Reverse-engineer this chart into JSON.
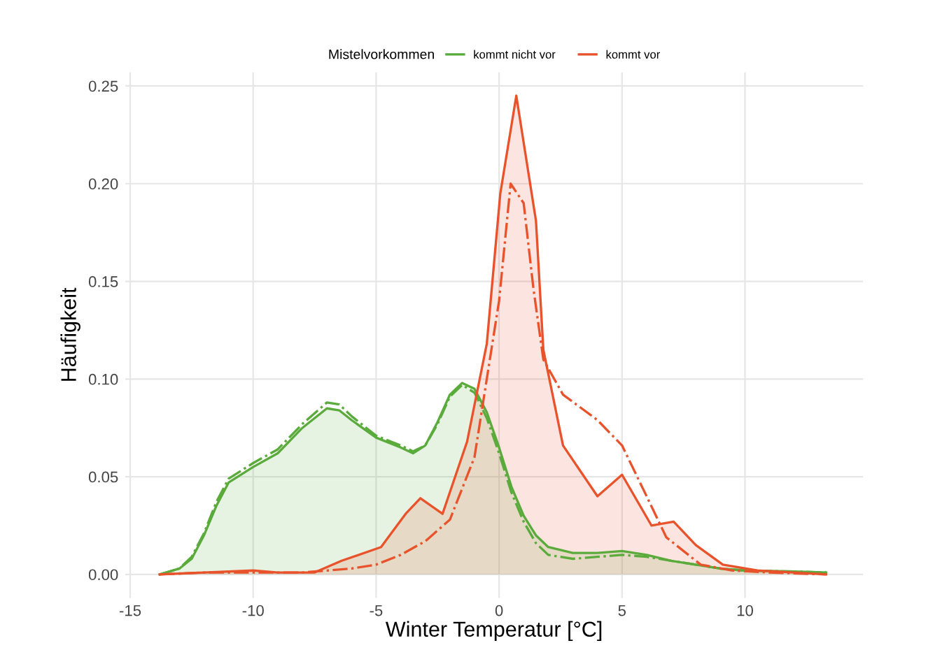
{
  "chart_data": {
    "type": "area",
    "xlabel": "Winter Temperatur [°C]",
    "ylabel": "Häufigkeit",
    "legend_title": "Mistelvorkommen",
    "legend": "top",
    "grid": true,
    "xlim": [
      -15.2,
      14.8
    ],
    "xticks": [
      -15,
      -10,
      -5,
      0,
      5,
      10
    ],
    "ylim": [
      -0.012,
      0.257
    ],
    "yticks": [
      {
        "value": 0,
        "label": "0.00"
      },
      {
        "value": 0.05,
        "label": "0.05"
      },
      {
        "value": 0.1,
        "label": "0.10"
      },
      {
        "value": 0.15,
        "label": "0.15"
      },
      {
        "value": 0.2,
        "label": "0.20"
      },
      {
        "value": 0.25,
        "label": "0.25"
      }
    ],
    "series": [
      {
        "name": "kommt nicht vor",
        "color": "#5aab3c",
        "line_style": "solid",
        "x": [
          -13.8,
          -13,
          -12.5,
          -12,
          -11.5,
          -11,
          -10,
          -9,
          -8,
          -7,
          -6.5,
          -6,
          -5,
          -4,
          -3.5,
          -3,
          -2.5,
          -2,
          -1.5,
          -1,
          -0.5,
          0,
          0.5,
          1,
          1.5,
          2,
          3,
          4,
          5,
          6,
          7,
          8,
          9,
          10,
          12,
          13.3
        ],
        "values": [
          0,
          0.003,
          0.008,
          0.02,
          0.035,
          0.047,
          0.055,
          0.062,
          0.075,
          0.085,
          0.084,
          0.079,
          0.07,
          0.065,
          0.062,
          0.066,
          0.078,
          0.092,
          0.098,
          0.095,
          0.083,
          0.065,
          0.045,
          0.03,
          0.02,
          0.014,
          0.011,
          0.011,
          0.012,
          0.01,
          0.007,
          0.005,
          0.003,
          0.002,
          0.0015,
          0.001
        ]
      },
      {
        "type": "line",
        "color": "#5aab3c",
        "line_style": "dashdot",
        "x": [
          -13.8,
          -13,
          -12.5,
          -12,
          -11.5,
          -11,
          -10,
          -9,
          -8,
          -7,
          -6.5,
          -6,
          -5,
          -4,
          -3.5,
          -3,
          -2.5,
          -2,
          -1.5,
          -1,
          -0.5,
          0,
          0.5,
          1,
          1.5,
          2,
          3,
          4,
          5,
          6,
          7,
          8,
          9,
          10,
          12,
          13.3
        ],
        "values": [
          0,
          0.003,
          0.009,
          0.021,
          0.037,
          0.049,
          0.057,
          0.064,
          0.077,
          0.088,
          0.087,
          0.081,
          0.071,
          0.066,
          0.063,
          0.066,
          0.077,
          0.091,
          0.097,
          0.093,
          0.08,
          0.062,
          0.042,
          0.027,
          0.016,
          0.01,
          0.008,
          0.009,
          0.01,
          0.009,
          0.007,
          0.005,
          0.003,
          0.002,
          0.0015,
          0.001
        ]
      },
      {
        "name": "kommt vor",
        "color": "#e8532c",
        "line_style": "solid",
        "x": [
          -13.8,
          -12,
          -10,
          -9,
          -7.5,
          -6.4,
          -4.8,
          -3.8,
          -3.2,
          -2.3,
          -1.3,
          -0.5,
          0.05,
          0.7,
          1.5,
          1.8,
          2.6,
          4,
          5,
          6.2,
          7.1,
          8,
          9.1,
          10.5,
          12,
          13.3
        ],
        "values": [
          0,
          0.001,
          0.002,
          0.001,
          0.001,
          0.007,
          0.014,
          0.031,
          0.039,
          0.031,
          0.068,
          0.118,
          0.195,
          0.245,
          0.181,
          0.115,
          0.066,
          0.04,
          0.051,
          0.025,
          0.027,
          0.015,
          0.005,
          0.002,
          0.001,
          0
        ]
      },
      {
        "type": "line",
        "color": "#e8532c",
        "line_style": "dashdot",
        "x": [
          -13.8,
          -12,
          -10,
          -8,
          -6,
          -5,
          -4,
          -3,
          -2,
          -1,
          0,
          0.47,
          1,
          1.4,
          1.8,
          2.6,
          4,
          5,
          6,
          6.8,
          8.2,
          9.5,
          11,
          13.3
        ],
        "values": [
          0,
          0.001,
          0.001,
          0.001,
          0.003,
          0.005,
          0.01,
          0.017,
          0.028,
          0.06,
          0.14,
          0.2,
          0.19,
          0.146,
          0.11,
          0.092,
          0.079,
          0.066,
          0.04,
          0.019,
          0.005,
          0.002,
          0.001,
          0
        ]
      }
    ]
  }
}
